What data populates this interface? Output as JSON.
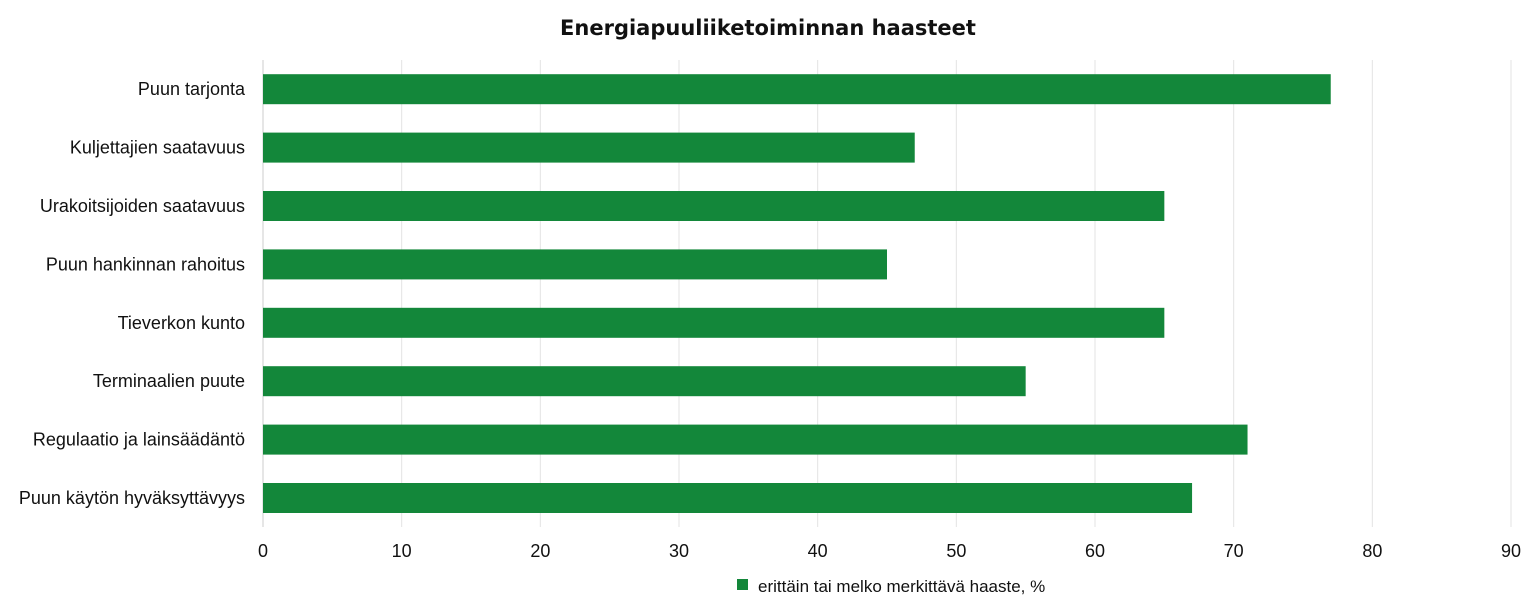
{
  "chart_data": {
    "type": "bar",
    "orientation": "horizontal",
    "title": "Energiapuuliiketoiminnan haasteet",
    "xlabel": "",
    "ylabel": "",
    "categories": [
      "Puun tarjonta",
      "Kuljettajien saatavuus",
      "Urakoitsijoiden saatavuus",
      "Puun hankinnan rahoitus",
      "Tieverkon kunto",
      "Terminaalien puute",
      "Regulaatio ja lainsäädäntö",
      "Puun käytön hyväksyttävyys"
    ],
    "series": [
      {
        "name": "erittäin tai melko merkittävä haaste, %",
        "values": [
          77,
          47,
          65,
          45,
          65,
          55,
          71,
          67
        ],
        "color": "#13873a"
      }
    ],
    "xlim": [
      0,
      90
    ],
    "xticks": [
      0,
      10,
      20,
      30,
      40,
      50,
      60,
      70,
      80,
      90
    ],
    "grid": "vertical",
    "legend": "bottom-center"
  }
}
